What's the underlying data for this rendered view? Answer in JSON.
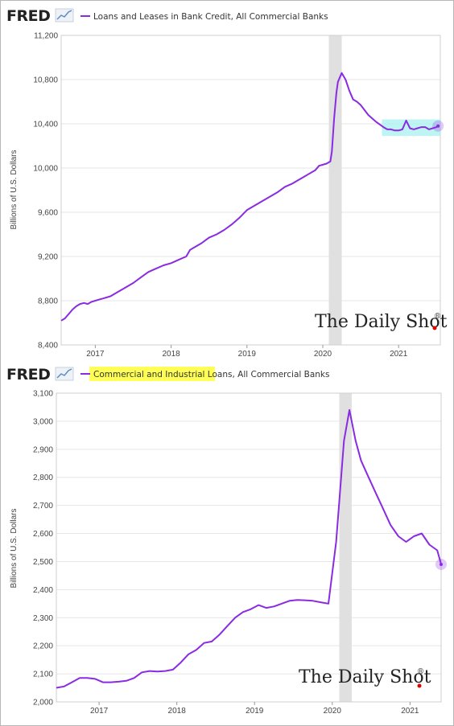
{
  "logo": {
    "text": "FRED"
  },
  "watermark": {
    "text": "The Daily Shot",
    "reg": "®"
  },
  "colors": {
    "line": "#8a2be2",
    "recession": "#e0e0e0",
    "highlight": "#ffff55",
    "box": "#a8f0f0"
  },
  "chart_data": [
    {
      "type": "line",
      "title": "",
      "legend": [
        "Loans and Leases in Bank Credit, All Commercial Banks"
      ],
      "ylabel": "Billions of U.S. Dollars",
      "xlabel": "",
      "xlim": [
        2016.55,
        2021.55
      ],
      "ylim": [
        8400,
        11200
      ],
      "yticks": [
        8400,
        8800,
        9200,
        9600,
        10000,
        10400,
        10800,
        11200
      ],
      "ytick_labels": [
        "8,400",
        "8,800",
        "9,200",
        "9,600",
        "10,000",
        "10,400",
        "10,800",
        "11,200"
      ],
      "xticks": [
        2017,
        2018,
        2019,
        2020,
        2021
      ],
      "xtick_labels": [
        "2017",
        "2018",
        "2019",
        "2020",
        "2021"
      ],
      "recession": [
        2020.08,
        2020.25
      ],
      "grid": true,
      "series": [
        {
          "x": [
            2016.55,
            2016.6,
            2016.65,
            2016.7,
            2016.75,
            2016.8,
            2016.85,
            2016.9,
            2016.95,
            2017.0,
            2017.05,
            2017.1,
            2017.2,
            2017.3,
            2017.4,
            2017.5,
            2017.6,
            2017.7,
            2017.8,
            2017.9,
            2018.0,
            2018.1,
            2018.2,
            2018.25,
            2018.3,
            2018.4,
            2018.5,
            2018.6,
            2018.7,
            2018.8,
            2018.9,
            2019.0,
            2019.1,
            2019.2,
            2019.3,
            2019.4,
            2019.5,
            2019.6,
            2019.7,
            2019.8,
            2019.9,
            2019.95,
            2020.0,
            2020.05,
            2020.1,
            2020.12,
            2020.15,
            2020.18,
            2020.2,
            2020.25,
            2020.3,
            2020.35,
            2020.4,
            2020.45,
            2020.5,
            2020.6,
            2020.7,
            2020.8,
            2020.85,
            2020.9,
            2020.95,
            2021.0,
            2021.05,
            2021.1,
            2021.15,
            2021.2,
            2021.25,
            2021.3,
            2021.35,
            2021.4,
            2021.45,
            2021.5,
            2021.52
          ],
          "y": [
            8620,
            8640,
            8680,
            8720,
            8750,
            8770,
            8780,
            8770,
            8790,
            8800,
            8810,
            8820,
            8840,
            8880,
            8920,
            8960,
            9010,
            9060,
            9090,
            9120,
            9140,
            9170,
            9200,
            9260,
            9280,
            9320,
            9370,
            9400,
            9440,
            9490,
            9550,
            9620,
            9660,
            9700,
            9740,
            9780,
            9830,
            9860,
            9900,
            9940,
            9980,
            10020,
            10030,
            10040,
            10060,
            10150,
            10450,
            10680,
            10780,
            10860,
            10800,
            10700,
            10620,
            10600,
            10570,
            10480,
            10420,
            10370,
            10350,
            10350,
            10340,
            10340,
            10350,
            10430,
            10360,
            10350,
            10360,
            10370,
            10370,
            10350,
            10360,
            10370,
            10380
          ]
        }
      ]
    },
    {
      "type": "line",
      "title": "",
      "legend": [
        "Commercial and Industrial Loans, All Commercial Banks"
      ],
      "legend_highlight": "Commercial and Industrial Loans",
      "ylabel": "Billions of U.S. Dollars",
      "xlabel": "",
      "xlim": [
        2016.45,
        2021.4
      ],
      "ylim": [
        2000,
        3100
      ],
      "yticks": [
        2000,
        2100,
        2200,
        2300,
        2400,
        2500,
        2600,
        2700,
        2800,
        2900,
        3000,
        3100
      ],
      "ytick_labels": [
        "2,000",
        "2,100",
        "2,200",
        "2,300",
        "2,400",
        "2,500",
        "2,600",
        "2,700",
        "2,800",
        "2,900",
        "3,000",
        "3,100"
      ],
      "xticks": [
        2017,
        2018,
        2019,
        2020,
        2021
      ],
      "xtick_labels": [
        "2017",
        "2018",
        "2019",
        "2020",
        "2021"
      ],
      "recession": [
        2020.09,
        2020.25
      ],
      "grid": true,
      "series": [
        {
          "x": [
            2016.45,
            2016.55,
            2016.65,
            2016.75,
            2016.85,
            2016.95,
            2017.05,
            2017.15,
            2017.25,
            2017.35,
            2017.45,
            2017.55,
            2017.65,
            2017.75,
            2017.85,
            2017.95,
            2018.05,
            2018.15,
            2018.25,
            2018.35,
            2018.45,
            2018.55,
            2018.65,
            2018.75,
            2018.85,
            2018.95,
            2019.05,
            2019.15,
            2019.25,
            2019.35,
            2019.45,
            2019.55,
            2019.65,
            2019.75,
            2019.85,
            2019.95,
            2020.05,
            2020.15,
            2020.22,
            2020.3,
            2020.37,
            2020.45,
            2020.55,
            2020.65,
            2020.75,
            2020.85,
            2020.95,
            2021.05,
            2021.15,
            2021.25,
            2021.35,
            2021.4
          ],
          "y": [
            2050,
            2055,
            2070,
            2085,
            2085,
            2082,
            2070,
            2070,
            2072,
            2075,
            2085,
            2105,
            2110,
            2108,
            2110,
            2115,
            2140,
            2170,
            2185,
            2210,
            2215,
            2240,
            2270,
            2300,
            2320,
            2330,
            2345,
            2335,
            2340,
            2350,
            2360,
            2363,
            2362,
            2360,
            2355,
            2350,
            2570,
            2930,
            3040,
            2930,
            2860,
            2810,
            2750,
            2690,
            2630,
            2590,
            2570,
            2590,
            2600,
            2560,
            2540,
            2490
          ]
        }
      ]
    }
  ]
}
